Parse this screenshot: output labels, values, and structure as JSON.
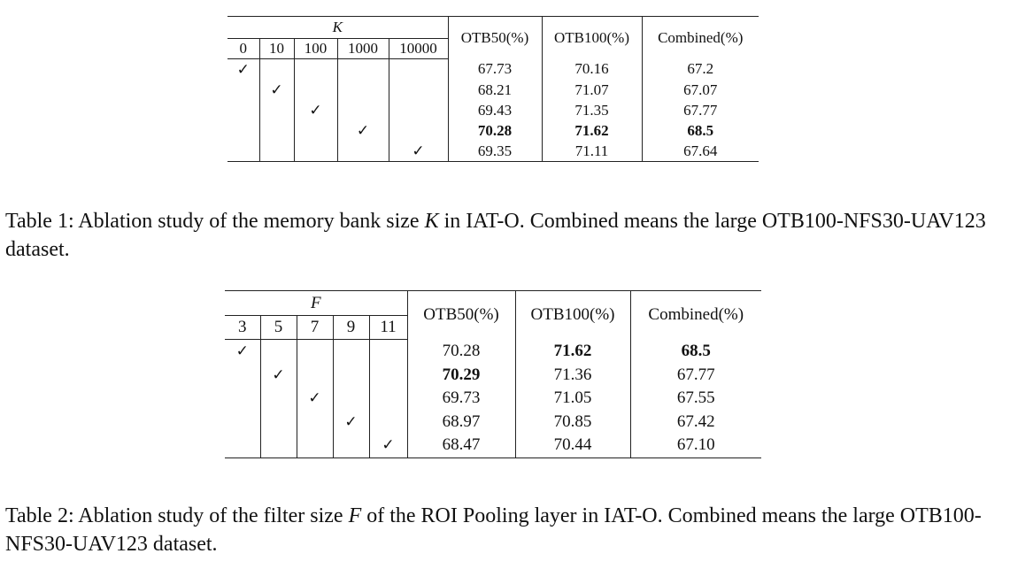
{
  "table1": {
    "param_symbol": "K",
    "param_values": [
      "0",
      "10",
      "100",
      "1000",
      "10000"
    ],
    "metric_headers": [
      "OTB50(%)",
      "OTB100(%)",
      "Combined(%)"
    ],
    "checkmark": "✓",
    "rows": [
      {
        "selected_index": 0,
        "otb50": "67.73",
        "otb100": "70.16",
        "combined": "67.2"
      },
      {
        "selected_index": 1,
        "otb50": "68.21",
        "otb100": "71.07",
        "combined": "67.07"
      },
      {
        "selected_index": 2,
        "otb50": "69.43",
        "otb100": "71.35",
        "combined": "67.77"
      },
      {
        "selected_index": 3,
        "otb50": "70.28",
        "otb100": "71.62",
        "combined": "68.5",
        "bold": [
          "otb50",
          "otb100",
          "combined"
        ]
      },
      {
        "selected_index": 4,
        "otb50": "69.35",
        "otb100": "71.11",
        "combined": "67.64"
      }
    ]
  },
  "caption1": {
    "label": "Table 1:",
    "text_before": " Ablation study of the memory bank size ",
    "symbol": "K",
    "text_after": " in IAT-O. Combined means the large OTB100-NFS30-UAV123 dataset."
  },
  "table2": {
    "param_symbol": "F",
    "param_values": [
      "3",
      "5",
      "7",
      "9",
      "11"
    ],
    "metric_headers": [
      "OTB50(%)",
      "OTB100(%)",
      "Combined(%)"
    ],
    "checkmark": "✓",
    "rows": [
      {
        "selected_index": 0,
        "otb50": "70.28",
        "otb100": "71.62",
        "combined": "68.5",
        "bold": [
          "otb100",
          "combined"
        ]
      },
      {
        "selected_index": 1,
        "otb50": "70.29",
        "otb100": "71.36",
        "combined": "67.77",
        "bold": [
          "otb50"
        ]
      },
      {
        "selected_index": 2,
        "otb50": "69.73",
        "otb100": "71.05",
        "combined": "67.55"
      },
      {
        "selected_index": 3,
        "otb50": "68.97",
        "otb100": "70.85",
        "combined": "67.42"
      },
      {
        "selected_index": 4,
        "otb50": "68.47",
        "otb100": "70.44",
        "combined": "67.10"
      }
    ]
  },
  "caption2": {
    "label": "Table 2:",
    "text_before": " Ablation study of the filter size ",
    "symbol": "F",
    "text_after": " of the ROI Pooling layer in IAT-O. Combined means the large OTB100-NFS30-UAV123 dataset."
  }
}
